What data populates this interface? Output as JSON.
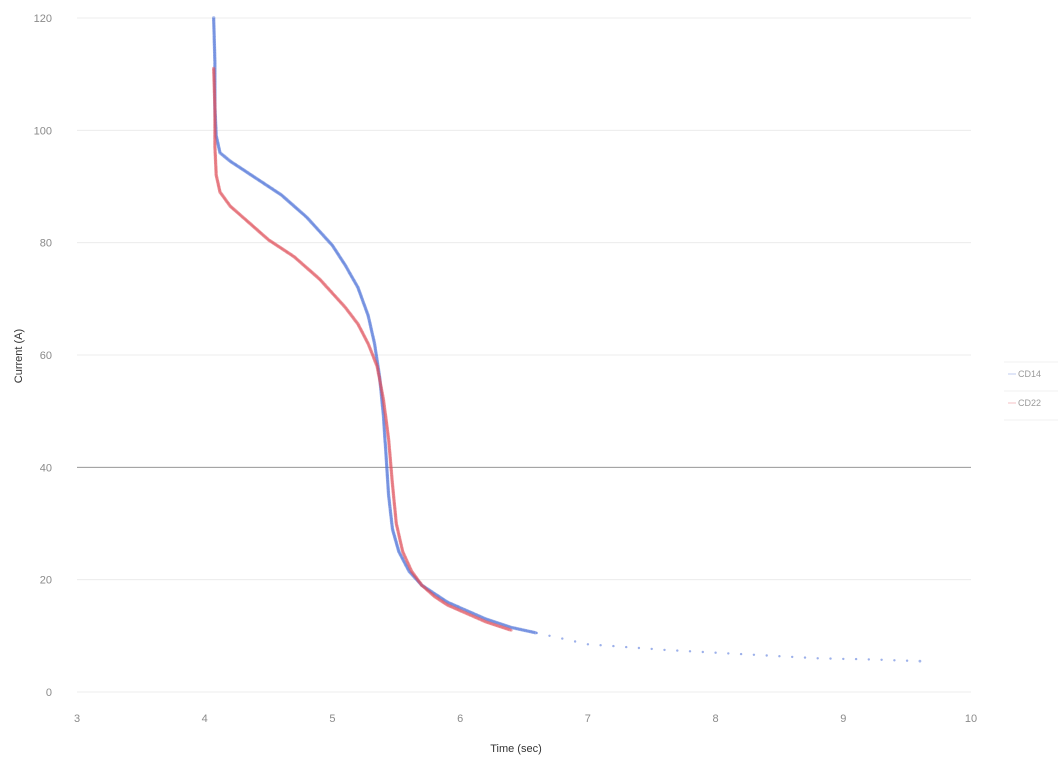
{
  "chart_data": {
    "type": "scatter",
    "title": "",
    "xlabel": "Time (sec)",
    "ylabel": "Current (A)",
    "xlim": [
      3,
      10
    ],
    "ylim": [
      0,
      120
    ],
    "x_ticks": [
      "3",
      "4",
      "5",
      "6",
      "7",
      "8",
      "9",
      "10"
    ],
    "y_ticks": [
      "0",
      "20",
      "40",
      "60",
      "80",
      "100",
      "120"
    ],
    "grid": "horizontal",
    "legend_position": "right",
    "reference_lines": [
      {
        "y": 40
      }
    ],
    "series": [
      {
        "name": "CD14",
        "color": "#4a6fd8",
        "points": [
          [
            4.07,
            120
          ],
          [
            4.08,
            112
          ],
          [
            4.08,
            104
          ],
          [
            4.09,
            99
          ],
          [
            4.12,
            96
          ],
          [
            4.2,
            94.5
          ],
          [
            4.3,
            93
          ],
          [
            4.4,
            91.5
          ],
          [
            4.5,
            90
          ],
          [
            4.6,
            88.5
          ],
          [
            4.7,
            86.5
          ],
          [
            4.8,
            84.5
          ],
          [
            4.9,
            82
          ],
          [
            5.0,
            79.5
          ],
          [
            5.1,
            76
          ],
          [
            5.2,
            72
          ],
          [
            5.28,
            67
          ],
          [
            5.33,
            62
          ],
          [
            5.37,
            56
          ],
          [
            5.4,
            49
          ],
          [
            5.42,
            42
          ],
          [
            5.44,
            35
          ],
          [
            5.47,
            29
          ],
          [
            5.52,
            25
          ],
          [
            5.6,
            21.5
          ],
          [
            5.7,
            19
          ],
          [
            5.8,
            17.5
          ],
          [
            5.9,
            16
          ],
          [
            6.0,
            15
          ],
          [
            6.2,
            13
          ],
          [
            6.4,
            11.5
          ],
          [
            6.6,
            10.5
          ],
          [
            6.8,
            9.5
          ],
          [
            7.0,
            8.5
          ],
          [
            7.3,
            8
          ],
          [
            7.6,
            7.5
          ],
          [
            8.0,
            7
          ],
          [
            8.4,
            6.5
          ],
          [
            8.8,
            6
          ],
          [
            9.2,
            5.8
          ],
          [
            9.6,
            5.5
          ]
        ]
      },
      {
        "name": "CD22",
        "color": "#e0505a",
        "points": [
          [
            4.07,
            111
          ],
          [
            4.08,
            104
          ],
          [
            4.08,
            97
          ],
          [
            4.09,
            92
          ],
          [
            4.12,
            89
          ],
          [
            4.2,
            86.5
          ],
          [
            4.3,
            84.5
          ],
          [
            4.4,
            82.5
          ],
          [
            4.5,
            80.5
          ],
          [
            4.6,
            79
          ],
          [
            4.7,
            77.5
          ],
          [
            4.8,
            75.5
          ],
          [
            4.9,
            73.5
          ],
          [
            5.0,
            71
          ],
          [
            5.1,
            68.5
          ],
          [
            5.2,
            65.5
          ],
          [
            5.28,
            62
          ],
          [
            5.35,
            58
          ],
          [
            5.4,
            52
          ],
          [
            5.44,
            45
          ],
          [
            5.47,
            37
          ],
          [
            5.5,
            30
          ],
          [
            5.55,
            25
          ],
          [
            5.62,
            21.5
          ],
          [
            5.7,
            19
          ],
          [
            5.8,
            17
          ],
          [
            5.9,
            15.5
          ],
          [
            6.0,
            14.5
          ],
          [
            6.2,
            12.5
          ],
          [
            6.4,
            11
          ]
        ]
      }
    ]
  }
}
